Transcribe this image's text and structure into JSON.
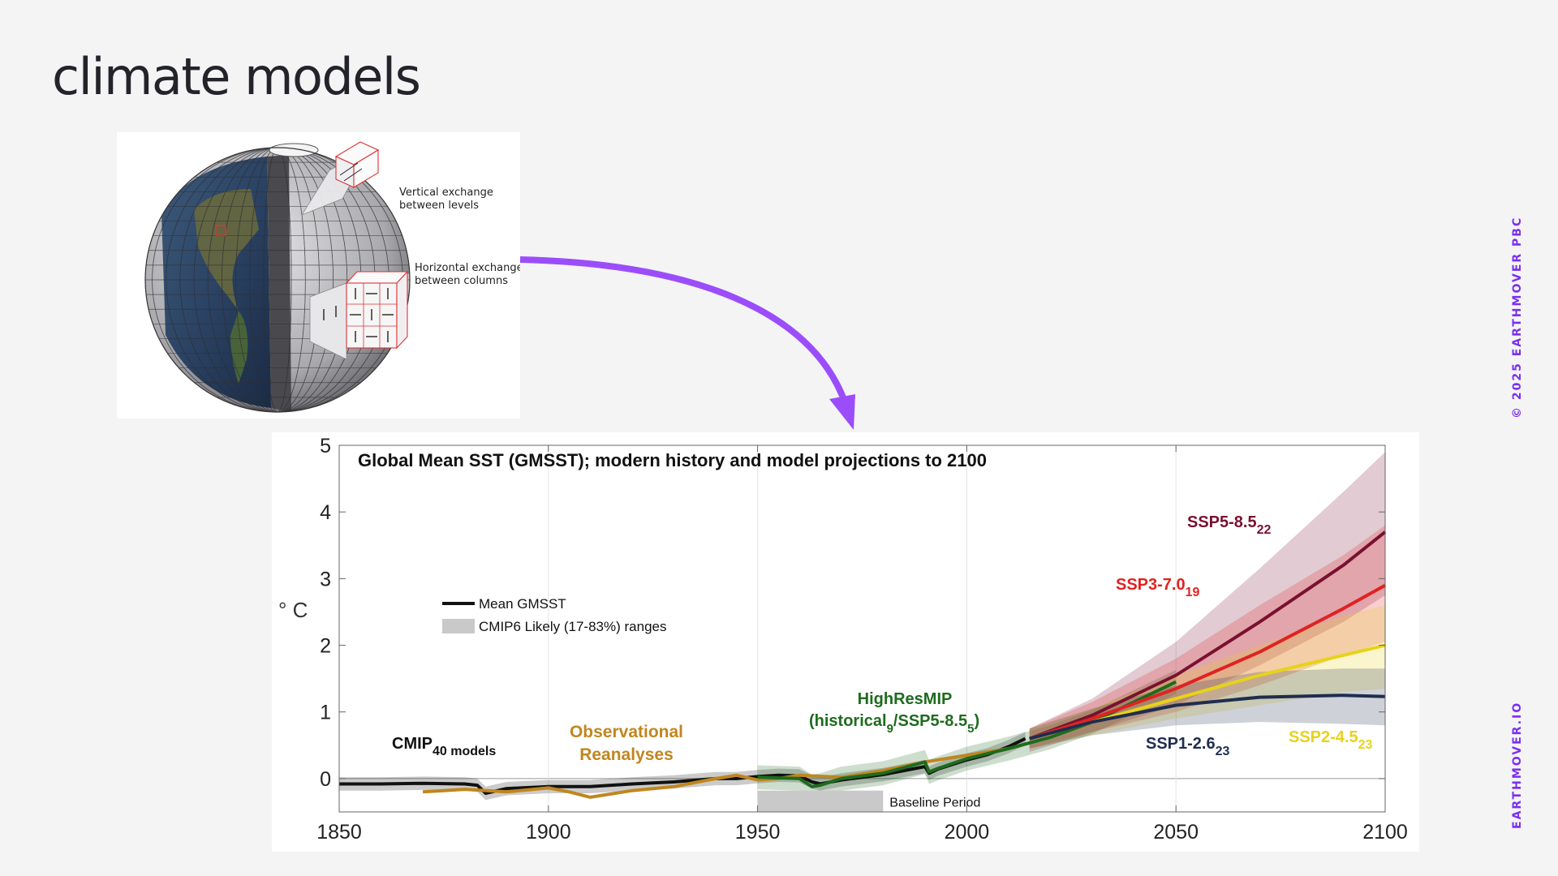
{
  "slide": {
    "title": "climate models",
    "copyright": "© 2025 EARTHMOVER PBC",
    "website": "EARTHMOVER.IO"
  },
  "globe": {
    "vertical_label": [
      "Vertical exchange",
      "between levels"
    ],
    "horizontal_label": [
      "Horizontal exchange",
      "between columns"
    ]
  },
  "colors": {
    "accent": "#9b4dfa",
    "observational": "#c0861f",
    "highresmip": "#1e6b1e",
    "ssp585": "#7a1030",
    "ssp370": "#e02222",
    "ssp245": "#e8d21a",
    "ssp126": "#1f2d4f"
  },
  "chart_data": {
    "type": "line",
    "title": "Global Mean SST (GMSST); modern history and model projections to 2100",
    "ylabel": "° C",
    "xlim": [
      1850,
      2100
    ],
    "ylim": [
      -0.5,
      5
    ],
    "x_ticks": [
      "1850",
      "1900",
      "1950",
      "2000",
      "2050",
      "2100"
    ],
    "y_ticks": [
      "0",
      "1",
      "2",
      "3",
      "4",
      "5"
    ],
    "legend": {
      "position": "upper-left",
      "items": [
        "Mean GMSST",
        "CMIP6 Likely (17-83%) ranges"
      ]
    },
    "annotations": {
      "cmip": {
        "main": "CMIP",
        "sub": "40 models"
      },
      "obs": [
        "Observational",
        "Reanalyses"
      ],
      "highres": {
        "line1": "HighResMIP",
        "open": "(historical",
        "sub1": "9",
        "mid": "/SSP5-8.5",
        "sub2": "5",
        "close": ")"
      },
      "baseline": "Baseline Period"
    },
    "baseline_period": [
      1950,
      1980
    ],
    "series": [
      {
        "name": "CMIP",
        "sub": "40 models",
        "color": "#111111",
        "band": 0.1,
        "x": [
          1850,
          1860,
          1870,
          1880,
          1883,
          1885,
          1890,
          1900,
          1910,
          1920,
          1930,
          1940,
          1945,
          1950,
          1955,
          1960,
          1963,
          1965,
          1970,
          1980,
          1990,
          1991,
          1993,
          2000,
          2005,
          2010,
          2014
        ],
        "y": [
          -0.08,
          -0.08,
          -0.07,
          -0.08,
          -0.1,
          -0.22,
          -0.15,
          -0.12,
          -0.12,
          -0.08,
          -0.05,
          0.0,
          0.0,
          0.03,
          0.05,
          0.04,
          -0.05,
          -0.08,
          -0.02,
          0.06,
          0.18,
          0.08,
          0.14,
          0.28,
          0.36,
          0.48,
          0.6
        ]
      },
      {
        "name": "Observational Reanalyses",
        "color": "#c0861f",
        "x": [
          1870,
          1875,
          1880,
          1890,
          1900,
          1905,
          1910,
          1920,
          1930,
          1940,
          1945,
          1950,
          1955,
          1960,
          1970,
          1980,
          1990,
          2000,
          2010,
          2020
        ],
        "y": [
          -0.2,
          -0.18,
          -0.16,
          -0.2,
          -0.14,
          -0.2,
          -0.28,
          -0.18,
          -0.12,
          0.0,
          0.05,
          -0.02,
          0.0,
          0.05,
          0.02,
          0.12,
          0.25,
          0.35,
          0.45,
          0.62
        ]
      },
      {
        "name": "HighResMIP",
        "color": "#1e6b1e",
        "band": 0.18,
        "x": [
          1950,
          1960,
          1963,
          1965,
          1970,
          1980,
          1990,
          1991,
          1993,
          2000,
          2010,
          2020,
          2030,
          2040,
          2050
        ],
        "y": [
          0.02,
          0.0,
          -0.12,
          -0.1,
          0.0,
          0.08,
          0.25,
          0.1,
          0.15,
          0.3,
          0.45,
          0.62,
          0.85,
          1.15,
          1.45
        ]
      },
      {
        "name": "SSP5-8.5",
        "sub": "22",
        "color": "#7a1030",
        "x": [
          2015,
          2030,
          2050,
          2070,
          2090,
          2100
        ],
        "y": [
          0.6,
          0.95,
          1.55,
          2.35,
          3.2,
          3.7
        ],
        "band_low": [
          0.4,
          0.7,
          1.1,
          1.7,
          2.35,
          2.75
        ],
        "band_high": [
          0.75,
          1.2,
          2.05,
          3.15,
          4.3,
          4.9
        ]
      },
      {
        "name": "SSP3-7.0",
        "sub": "19",
        "color": "#e02222",
        "x": [
          2015,
          2030,
          2050,
          2070,
          2090,
          2100
        ],
        "y": [
          0.6,
          0.9,
          1.35,
          1.9,
          2.55,
          2.9
        ],
        "band_low": [
          0.45,
          0.7,
          1.0,
          1.4,
          1.85,
          2.05
        ],
        "band_high": [
          0.75,
          1.15,
          1.8,
          2.6,
          3.35,
          3.8
        ]
      },
      {
        "name": "SSP2-4.5",
        "sub": "23",
        "color": "#e8d21a",
        "x": [
          2015,
          2030,
          2050,
          2070,
          2090,
          2100
        ],
        "y": [
          0.6,
          0.85,
          1.2,
          1.55,
          1.85,
          2.0
        ],
        "band_low": [
          0.45,
          0.65,
          0.9,
          1.1,
          1.3,
          1.35
        ],
        "band_high": [
          0.75,
          1.05,
          1.55,
          2.0,
          2.45,
          2.6
        ]
      },
      {
        "name": "SSP1-2.6",
        "sub": "23",
        "color": "#1f2d4f",
        "x": [
          2015,
          2030,
          2050,
          2070,
          2090,
          2100
        ],
        "y": [
          0.6,
          0.85,
          1.1,
          1.22,
          1.25,
          1.23
        ],
        "band_low": [
          0.45,
          0.65,
          0.8,
          0.85,
          0.82,
          0.8
        ],
        "band_high": [
          0.75,
          1.05,
          1.4,
          1.6,
          1.65,
          1.65
        ]
      }
    ]
  }
}
